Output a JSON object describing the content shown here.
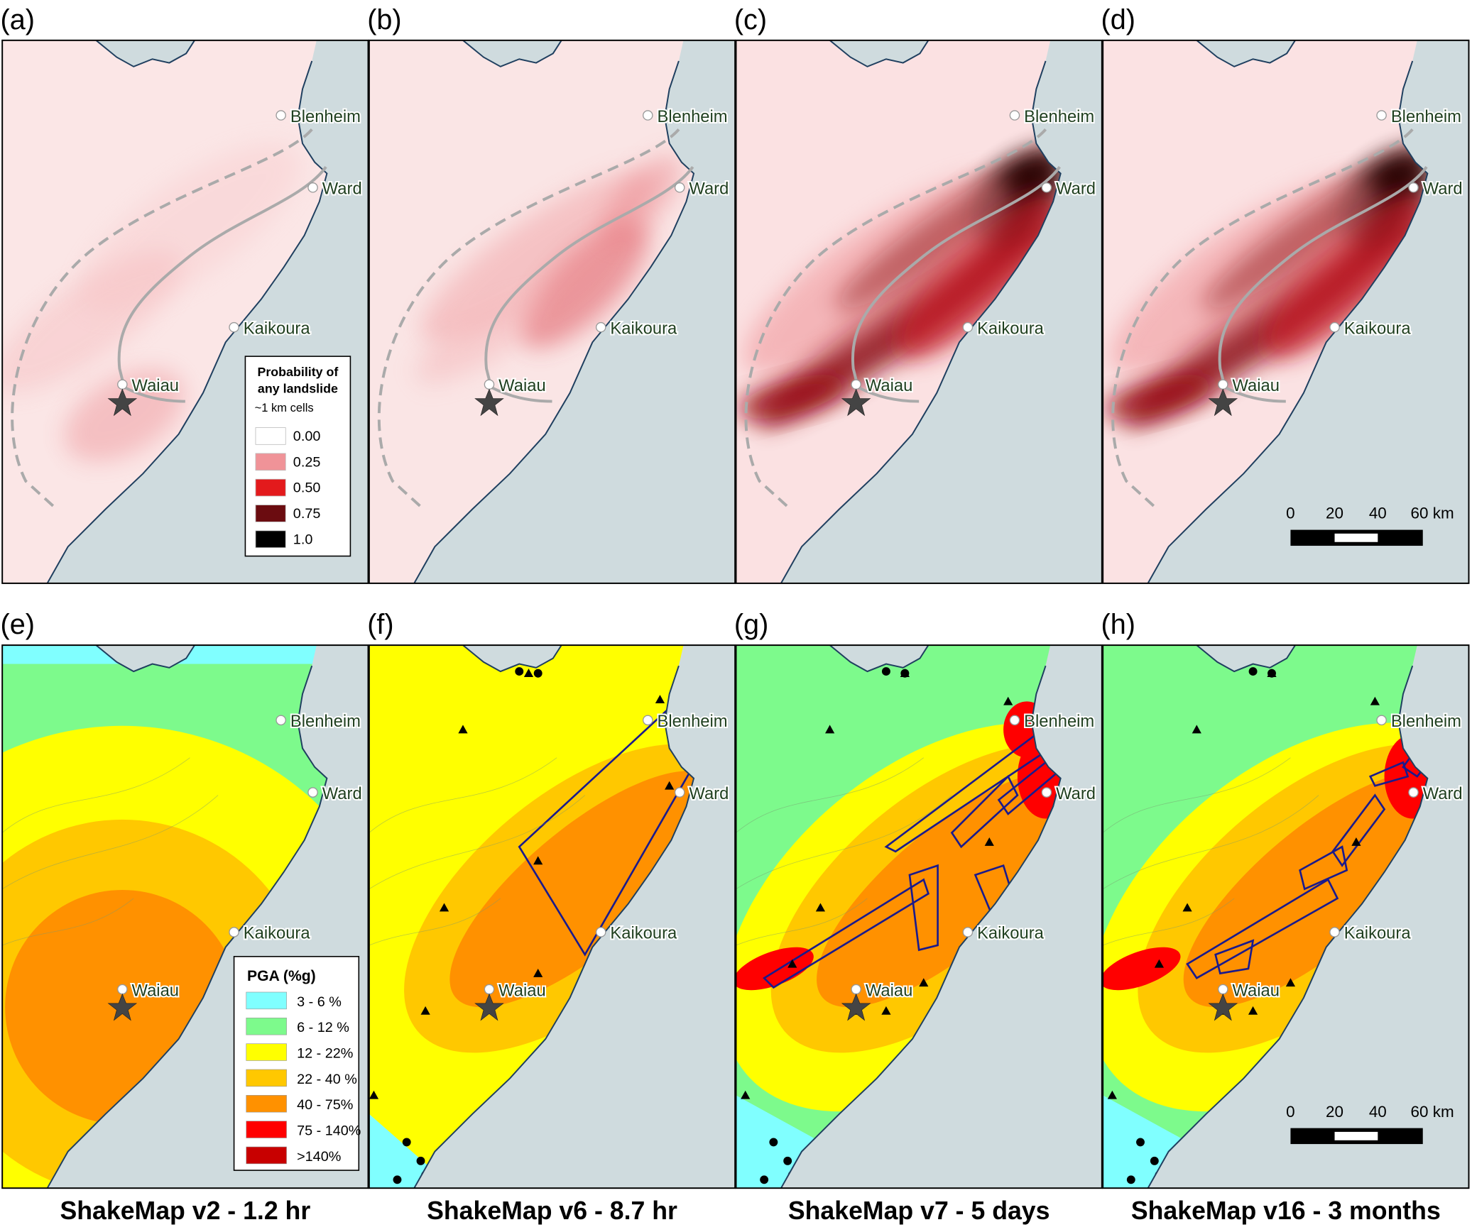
{
  "colors": {
    "sea": "#cfdbde",
    "land": "#fdf2f2",
    "coast": "#1f3f5f",
    "rupture": "#1a1a8c"
  },
  "towns": [
    "Blenheim",
    "Ward",
    "Kaikoura",
    "Waiau"
  ],
  "panels": [
    {
      "label": "(a)",
      "type": "landslide",
      "intensity": 0.25,
      "caption": ""
    },
    {
      "label": "(b)",
      "type": "landslide",
      "intensity": 0.45,
      "caption": ""
    },
    {
      "label": "(c)",
      "type": "landslide",
      "intensity": 1.0,
      "caption": ""
    },
    {
      "label": "(d)",
      "type": "landslide",
      "intensity": 0.9,
      "caption": ""
    },
    {
      "label": "(e)",
      "type": "shakemap",
      "version": "v2",
      "caption": "ShakeMap v2 - 1.2 hr"
    },
    {
      "label": "(f)",
      "type": "shakemap",
      "version": "v6",
      "caption": "ShakeMap v6 - 8.7 hr"
    },
    {
      "label": "(g)",
      "type": "shakemap",
      "version": "v7",
      "caption": "ShakeMap v7 - 5 days"
    },
    {
      "label": "(h)",
      "type": "shakemap",
      "version": "v16",
      "caption": "ShakeMap v16 - 3 months"
    }
  ],
  "landslide_legend": {
    "title_line1": "Probability of",
    "title_line2": "any landslide",
    "subtitle": "~1 km cells",
    "items": [
      {
        "label": "0.00",
        "color": "#ffffff"
      },
      {
        "label": "0.25",
        "color": "#f09398"
      },
      {
        "label": "0.50",
        "color": "#e31a1c"
      },
      {
        "label": "0.75",
        "color": "#6b0c10"
      },
      {
        "label": "1.0",
        "color": "#000000"
      }
    ]
  },
  "pga_legend": {
    "title": "PGA (%g)",
    "items": [
      {
        "label": "3 - 6 %",
        "color": "#80ffff"
      },
      {
        "label": "6 - 12 %",
        "color": "#7dfa8c"
      },
      {
        "label": "12 - 22%",
        "color": "#ffff00"
      },
      {
        "label": "22 - 40 %",
        "color": "#ffc800"
      },
      {
        "label": "40 - 75%",
        "color": "#ff9100"
      },
      {
        "label": "75 - 140%",
        "color": "#ff0000"
      },
      {
        "label": ">140%",
        "color": "#c80000"
      }
    ]
  },
  "scale_bar": {
    "ticks": [
      "0",
      "20",
      "40",
      "60 km"
    ]
  }
}
